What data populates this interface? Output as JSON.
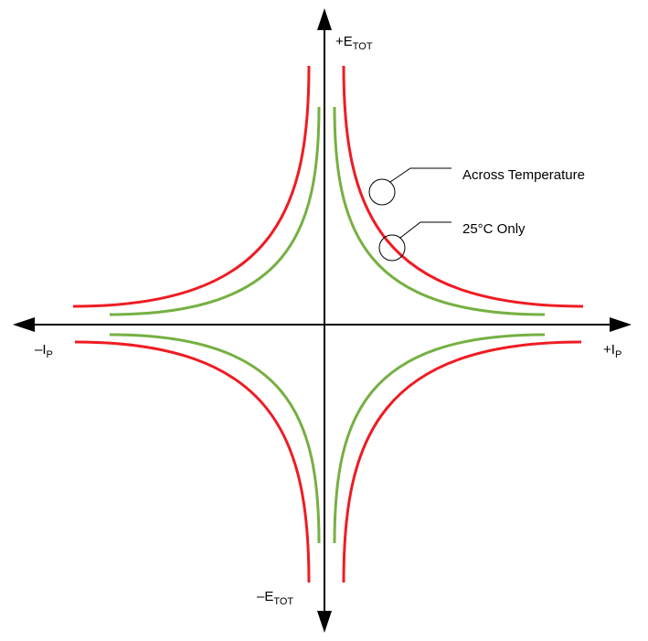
{
  "axes": {
    "y_positive": {
      "sign": "+",
      "base": "E",
      "sub": "TOT"
    },
    "y_negative": {
      "sign": "–",
      "base": "E",
      "sub": "TOT"
    },
    "x_positive": {
      "sign": "+",
      "base": "I",
      "sub": "P"
    },
    "x_negative": {
      "sign": "–",
      "base": "I",
      "sub": "P"
    }
  },
  "callouts": {
    "outer": "Across Temperature",
    "inner": "25°C Only"
  },
  "colors": {
    "axis": "#000000",
    "across_temperature_curve": "#ee1c23",
    "room_temperature_curve": "#76b043"
  }
}
